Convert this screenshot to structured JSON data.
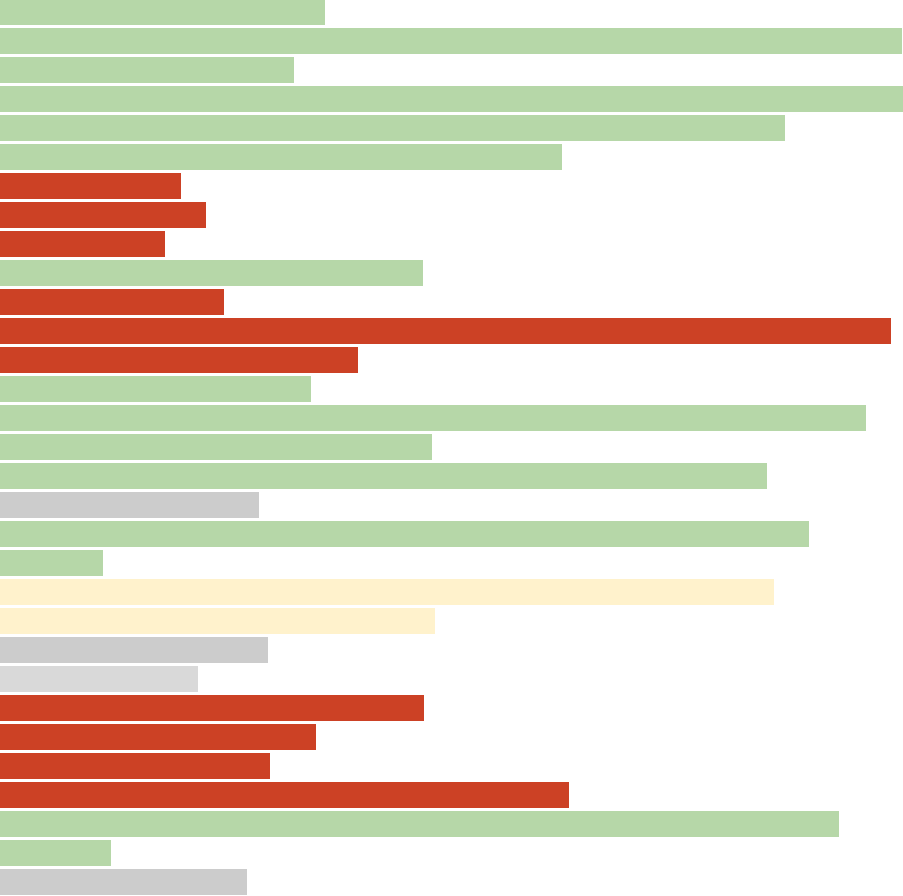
{
  "chart_data": {
    "type": "bar",
    "orientation": "horizontal",
    "xlim": [
      0,
      903
    ],
    "grid": false,
    "legend": "none",
    "colors": {
      "green": "#b6d7a8",
      "red": "#cc4125",
      "gray": "#cccccc",
      "light_gray": "#d9d9d9",
      "yellow": "#fff2cc"
    },
    "bars": [
      {
        "value": 325,
        "color": "green"
      },
      {
        "value": 902,
        "color": "green"
      },
      {
        "value": 294,
        "color": "green"
      },
      {
        "value": 903,
        "color": "green"
      },
      {
        "value": 785,
        "color": "green"
      },
      {
        "value": 562,
        "color": "green"
      },
      {
        "value": 181,
        "color": "red"
      },
      {
        "value": 206,
        "color": "red"
      },
      {
        "value": 165,
        "color": "red"
      },
      {
        "value": 423,
        "color": "green"
      },
      {
        "value": 224,
        "color": "red"
      },
      {
        "value": 891,
        "color": "red"
      },
      {
        "value": 358,
        "color": "red"
      },
      {
        "value": 311,
        "color": "green"
      },
      {
        "value": 866,
        "color": "green"
      },
      {
        "value": 432,
        "color": "green"
      },
      {
        "value": 767,
        "color": "green"
      },
      {
        "value": 259,
        "color": "gray"
      },
      {
        "value": 809,
        "color": "green"
      },
      {
        "value": 103,
        "color": "green"
      },
      {
        "value": 774,
        "color": "yellow"
      },
      {
        "value": 435,
        "color": "yellow"
      },
      {
        "value": 268,
        "color": "gray"
      },
      {
        "value": 198,
        "color": "light_gray"
      },
      {
        "value": 424,
        "color": "red"
      },
      {
        "value": 316,
        "color": "red"
      },
      {
        "value": 270,
        "color": "red"
      },
      {
        "value": 569,
        "color": "red"
      },
      {
        "value": 839,
        "color": "green"
      },
      {
        "value": 111,
        "color": "green"
      },
      {
        "value": 247,
        "color": "gray"
      }
    ]
  }
}
